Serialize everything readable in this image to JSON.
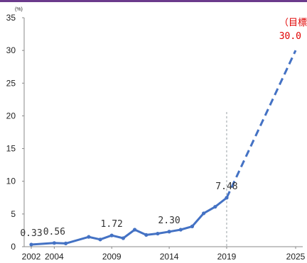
{
  "colors": {
    "top_bar": "#6b3a8c",
    "line": "#4472c4",
    "axis": "#888888",
    "guide": "#9aa0a6",
    "target": "#e00000"
  },
  "chart_data": {
    "type": "line",
    "title": "",
    "xlabel": "",
    "ylabel": "(%)",
    "ylim": [
      0,
      35
    ],
    "yticks": [
      0,
      5,
      10,
      15,
      20,
      25,
      30,
      35
    ],
    "xticks": [
      2002,
      2004,
      2009,
      2014,
      2019,
      2025
    ],
    "grid": false,
    "series": [
      {
        "style": "solid",
        "x": [
          2002,
          2004,
          2005,
          2007,
          2008,
          2009,
          2010,
          2011,
          2012,
          2013,
          2014,
          2015,
          2016,
          2017,
          2018,
          2019
        ],
        "y": [
          0.33,
          0.56,
          0.5,
          1.5,
          1.1,
          1.72,
          1.3,
          2.6,
          1.8,
          2.0,
          2.3,
          2.6,
          3.1,
          5.1,
          6.1,
          7.48
        ]
      },
      {
        "style": "dashed",
        "x": [
          2019,
          2025
        ],
        "y": [
          7.48,
          30.0
        ]
      }
    ],
    "guide_line_x": 2019,
    "data_labels": [
      {
        "x": 2002,
        "y": 0.33,
        "text": "0.33"
      },
      {
        "x": 2004,
        "y": 0.56,
        "text": "0.56"
      },
      {
        "x": 2009,
        "y": 1.72,
        "text": "1.72"
      },
      {
        "x": 2014,
        "y": 2.3,
        "text": "2.30"
      },
      {
        "x": 2019,
        "y": 7.48,
        "text": "7.48"
      }
    ],
    "target_label": {
      "x": 2025,
      "y": 30.0,
      "line1": "（目標",
      "line2": "30.0"
    }
  }
}
